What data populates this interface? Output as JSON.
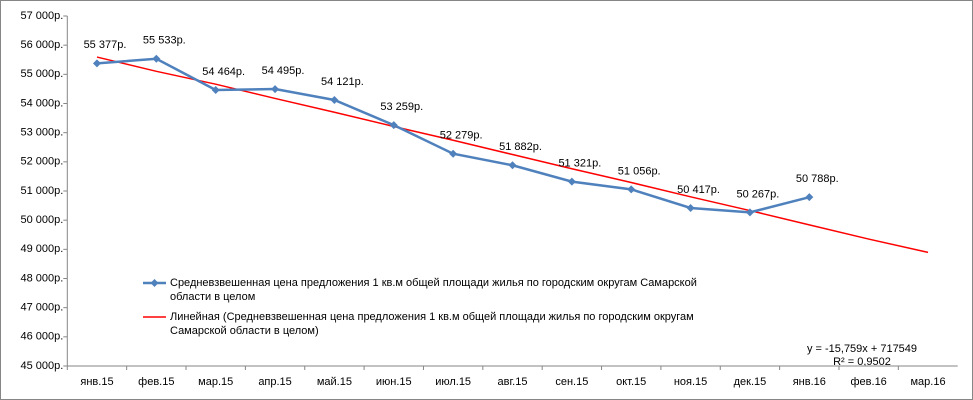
{
  "chart_data": {
    "type": "line",
    "categories": [
      "янв.15",
      "фев.15",
      "мар.15",
      "апр.15",
      "май.15",
      "июн.15",
      "июл.15",
      "авг.15",
      "сен.15",
      "окт.15",
      "ноя.15",
      "дек.15",
      "янв.16",
      "фев.16",
      "мар.16"
    ],
    "series": [
      {
        "name": "Средневзвешенная  цена предложения  1 кв.м общей площади жилья по городским округам Самарской области в целом",
        "color": "#4f81bd",
        "values": [
          55377,
          55533,
          54464,
          54495,
          54121,
          53259,
          52279,
          51882,
          51321,
          51056,
          50417,
          50267,
          50788,
          null,
          null
        ],
        "value_labels": [
          "55 377р.",
          "55 533р.",
          "54 464р.",
          "54 495р.",
          "54 121р.",
          "53 259р.",
          "52 279р.",
          "51 882р.",
          "51 321р.",
          "51 056р.",
          "50 417р.",
          "50 267р.",
          "50 788р.",
          null,
          null
        ]
      },
      {
        "name": "Линейная (Средневзвешенная  цена предложения  1 кв.м общей площади жилья по городским округам Самарской области в целом)",
        "color": "#ff0000",
        "values": [
          55592,
          55103,
          54662,
          54174,
          53701,
          53212,
          52740,
          52251,
          51763,
          51290,
          50801,
          50329,
          49840,
          49352,
          48895
        ]
      }
    ],
    "ylim": [
      45000,
      57000
    ],
    "yticks": [
      {
        "value": 45000,
        "label": "45 000р."
      },
      {
        "value": 46000,
        "label": "46 000р."
      },
      {
        "value": 47000,
        "label": "47 000р."
      },
      {
        "value": 48000,
        "label": "48 000р."
      },
      {
        "value": 49000,
        "label": "49 000р."
      },
      {
        "value": 50000,
        "label": "50 000р."
      },
      {
        "value": 51000,
        "label": "51 000р."
      },
      {
        "value": 52000,
        "label": "52 000р."
      },
      {
        "value": 53000,
        "label": "53 000р."
      },
      {
        "value": 54000,
        "label": "54 000р."
      },
      {
        "value": 55000,
        "label": "55 000р."
      },
      {
        "value": 56000,
        "label": "56 000р."
      },
      {
        "value": 57000,
        "label": "57 000р."
      }
    ],
    "annotations": [
      "y = -15,759x + 717549",
      "R² = 0,9502"
    ]
  }
}
